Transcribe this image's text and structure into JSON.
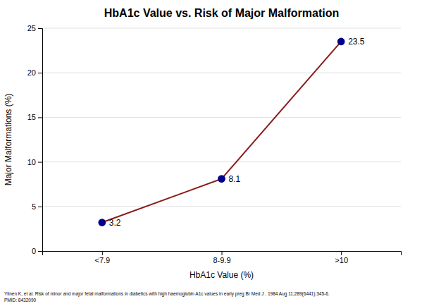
{
  "chart_data": {
    "type": "line",
    "title": "HbA1c Value vs. Risk of Major Malformation",
    "xlabel": "HbA1c Value (%)",
    "ylabel": "Major Malformations (%)",
    "categories": [
      "<7.9",
      "8-9.9",
      ">10"
    ],
    "values": [
      3.2,
      8.1,
      23.5
    ],
    "color": "#8B1A1A",
    "colors": [
      "#00008B",
      "#00008B",
      "#00008B"
    ],
    "marker": "circle",
    "ylim": [
      0,
      25
    ],
    "yticks": [
      0,
      5,
      10,
      15,
      20,
      25
    ],
    "grid": true,
    "data_labels": true,
    "annotations": [
      "Ylinen K, et al. Risk of minor and major fetal malformations in diabetics with high haemoglobin A1c values in early preg Br Med J . 1984 Aug 11;289(6441):345-6.",
      "PMID: 8432090"
    ]
  }
}
